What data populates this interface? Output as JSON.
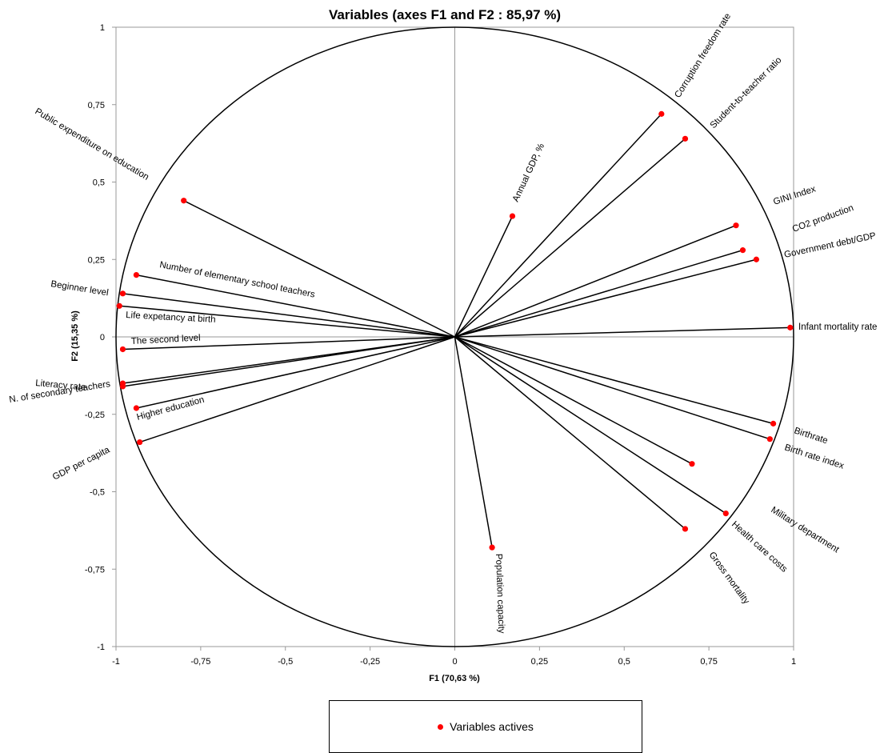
{
  "chart_data": {
    "type": "scatter",
    "title": "Variables (axes F1 and F2 : 85,97 %)",
    "xlabel": "F1 (70,63 %)",
    "ylabel": "F2 (15,35 %)",
    "xlim": [
      -1,
      1
    ],
    "ylim": [
      -1,
      1
    ],
    "x_ticks": [
      "-1",
      "-0,75",
      "-0,5",
      "-0,25",
      "0",
      "0,25",
      "0,5",
      "0,75",
      "1"
    ],
    "y_ticks": [
      "1",
      "0,75",
      "0,5",
      "0,25",
      "0",
      "-0,25",
      "-0,5",
      "-0,75",
      "-1"
    ],
    "legend": "Variables actives",
    "series_color": "#ff0000",
    "points": [
      {
        "label": "Corruption freedom rate",
        "x": 0.61,
        "y": 0.72
      },
      {
        "label": "Student-to-teacher ratio",
        "x": 0.68,
        "y": 0.64
      },
      {
        "label": "Annual GDP, %",
        "x": 0.17,
        "y": 0.39
      },
      {
        "label": "GINI Index",
        "x": 0.83,
        "y": 0.36
      },
      {
        "label": "CO2 production",
        "x": 0.85,
        "y": 0.28
      },
      {
        "label": "Government debt/GDP",
        "x": 0.89,
        "y": 0.25
      },
      {
        "label": "Infant mortality rate",
        "x": 0.99,
        "y": 0.03
      },
      {
        "label": "Birthrate",
        "x": 0.94,
        "y": -0.28
      },
      {
        "label": "Birth rate index",
        "x": 0.93,
        "y": -0.33
      },
      {
        "label": "Military department",
        "x": 0.7,
        "y": -0.41
      },
      {
        "label": "Health care costs",
        "x": 0.8,
        "y": -0.57
      },
      {
        "label": "Gross mortality",
        "x": 0.68,
        "y": -0.62
      },
      {
        "label": "Population capacity",
        "x": 0.11,
        "y": -0.68
      },
      {
        "label": "Public expenditure on education",
        "x": -0.8,
        "y": 0.44
      },
      {
        "label": "Number of elementary school teachers",
        "x": -0.94,
        "y": 0.2
      },
      {
        "label": "Beginner level",
        "x": -0.98,
        "y": 0.14
      },
      {
        "label": "Life expetancy at birth",
        "x": -0.99,
        "y": 0.1
      },
      {
        "label": "The second level",
        "x": -0.98,
        "y": -0.04
      },
      {
        "label": "Literacy rate",
        "x": -0.98,
        "y": -0.15
      },
      {
        "label": "N. of secondary teachers",
        "x": -0.98,
        "y": -0.16
      },
      {
        "label": "Higher education",
        "x": -0.94,
        "y": -0.23
      },
      {
        "label": "GDP per capita",
        "x": -0.93,
        "y": -0.34
      }
    ]
  }
}
